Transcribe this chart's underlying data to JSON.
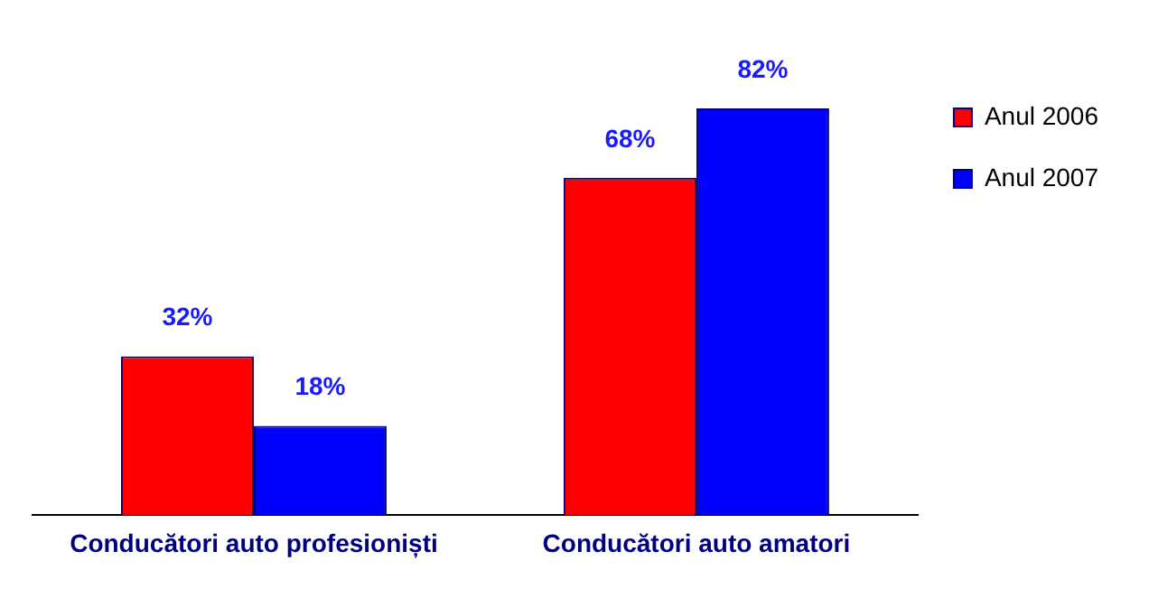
{
  "chart_data": {
    "type": "bar",
    "categories": [
      "Conducători auto profesioniști",
      "Conducători auto amatori"
    ],
    "series": [
      {
        "name": "Anul 2006",
        "color": "#ff0000",
        "values": [
          32,
          68
        ],
        "value_labels": [
          "32%",
          "68%"
        ]
      },
      {
        "name": "Anul 2007",
        "color": "#0000ff",
        "values": [
          18,
          82
        ],
        "value_labels": [
          "18%",
          "82%"
        ]
      }
    ],
    "legend": "top right",
    "grid": false
  }
}
